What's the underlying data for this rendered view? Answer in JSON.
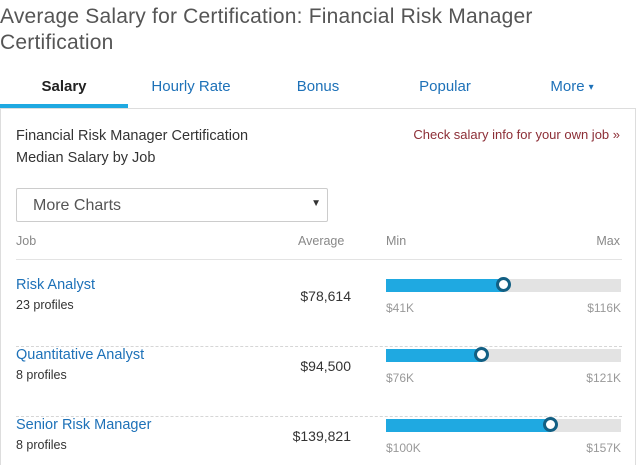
{
  "page": {
    "title": "Average Salary for Certification: Financial Risk Manager Certification"
  },
  "tabs": [
    {
      "label": "Salary",
      "active": true
    },
    {
      "label": "Hourly Rate"
    },
    {
      "label": "Bonus"
    },
    {
      "label": "Popular"
    },
    {
      "label": "More",
      "caret": "▾"
    }
  ],
  "panel": {
    "title_line1": "Financial Risk Manager Certification",
    "title_line2": "Median Salary by Job",
    "own_job_link": "Check salary info for your own job »",
    "select": {
      "value": "More Charts",
      "arrow": "▼"
    },
    "columns": {
      "job": "Job",
      "average": "Average",
      "min": "Min",
      "max": "Max"
    },
    "rows": [
      {
        "job": "Risk Analyst",
        "profiles": "23 profiles",
        "average": "$78,614",
        "min": "$41K",
        "max": "$116K",
        "median_fraction": 0.5
      },
      {
        "job": "Quantitative Analyst",
        "profiles": "8 profiles",
        "average": "$94,500",
        "min": "$76K",
        "max": "$121K",
        "median_fraction": 0.41
      },
      {
        "job": "Senior Risk Manager",
        "profiles": "8 profiles",
        "average": "$139,821",
        "min": "$100K",
        "max": "$157K",
        "median_fraction": 0.7
      }
    ]
  },
  "colors": {
    "accent": "#1fa9e1",
    "link": "#1d71b8",
    "marker": "#125f83",
    "own_job_link": "#8c2e36"
  }
}
